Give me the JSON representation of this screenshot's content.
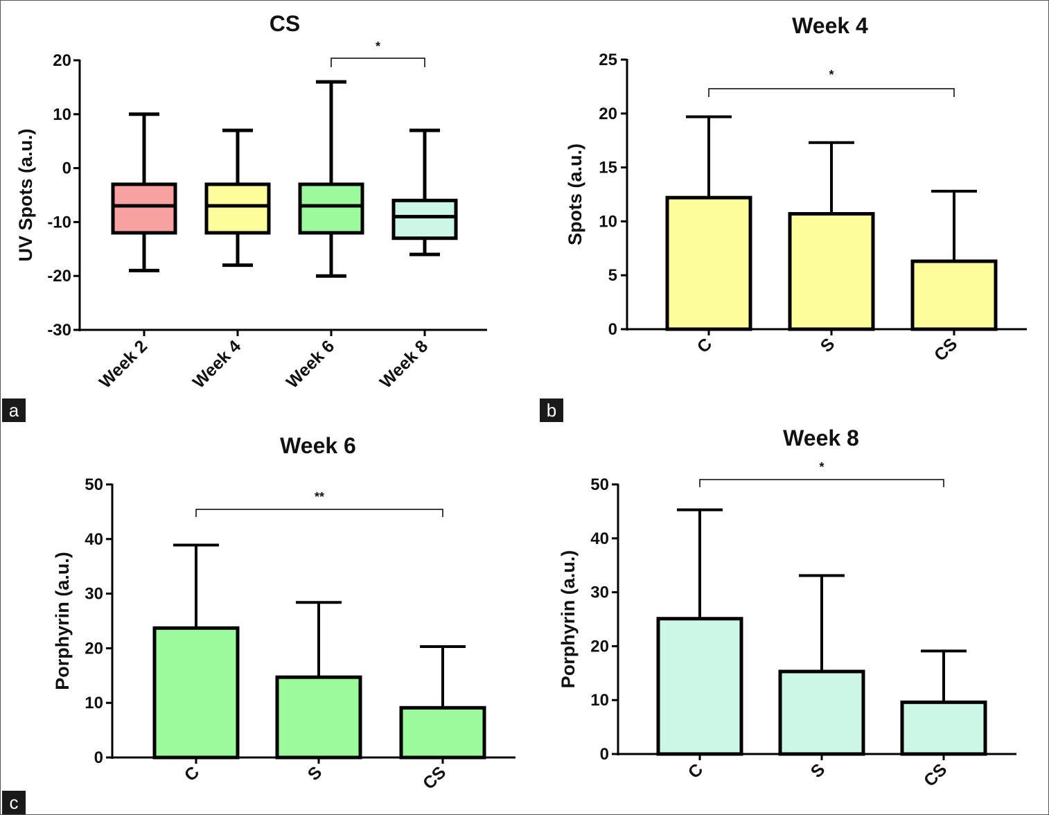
{
  "panel_letters": [
    "a",
    "b",
    "c"
  ],
  "chart_data": [
    {
      "type": "box",
      "title": "CS",
      "xlabel": "",
      "ylabel": "UV Spots (a.u.)",
      "ylim": [
        -30,
        20
      ],
      "yticks": [
        -30,
        -20,
        -10,
        0,
        10,
        20
      ],
      "categories": [
        "Week 2",
        "Week 4",
        "Week 6",
        "Week 8"
      ],
      "boxes": [
        {
          "min": -19,
          "q1": -12,
          "median": -7,
          "q3": -3,
          "max": 10
        },
        {
          "min": -18,
          "q1": -12,
          "median": -7,
          "q3": -3,
          "max": 7
        },
        {
          "min": -20,
          "q1": -12,
          "median": -7,
          "q3": -3,
          "max": 16
        },
        {
          "min": -16,
          "q1": -13,
          "median": -9,
          "q3": -6,
          "max": 7
        }
      ],
      "colors": [
        "#f7a1a1",
        "#fdfd9c",
        "#9cfa9c",
        "#ccf6e6"
      ],
      "significance": [
        {
          "from": 2,
          "to": 3,
          "label": "*"
        }
      ]
    },
    {
      "type": "bar",
      "title": "Week 4",
      "xlabel": "",
      "ylabel": "Spots (a.u.)",
      "ylim": [
        0,
        25
      ],
      "yticks": [
        0,
        5,
        10,
        15,
        20,
        25
      ],
      "categories": [
        "C",
        "S",
        "CS"
      ],
      "values": [
        12.2,
        10.7,
        6.3
      ],
      "errors": [
        19.7,
        17.3,
        12.8
      ],
      "color": "#fdfd9c",
      "significance": [
        {
          "from": 0,
          "to": 2,
          "label": "*"
        }
      ]
    },
    {
      "type": "bar",
      "title": "Week 6",
      "xlabel": "",
      "ylabel": "Porphyrin (a.u.)",
      "ylim": [
        0,
        50
      ],
      "yticks": [
        0,
        10,
        20,
        30,
        40,
        50
      ],
      "categories": [
        "C",
        "S",
        "CS"
      ],
      "values": [
        23.7,
        14.7,
        9.1
      ],
      "errors": [
        38.9,
        28.4,
        20.3
      ],
      "color": "#9cfa9c",
      "significance": [
        {
          "from": 0,
          "to": 2,
          "label": "**"
        }
      ]
    },
    {
      "type": "bar",
      "title": "Week 8",
      "xlabel": "",
      "ylabel": "Porphyrin (a.u.)",
      "ylim": [
        0,
        50
      ],
      "yticks": [
        0,
        10,
        20,
        30,
        40,
        50
      ],
      "categories": [
        "C",
        "S",
        "CS"
      ],
      "values": [
        25.1,
        15.3,
        9.6
      ],
      "errors": [
        45.3,
        33.1,
        19.1
      ],
      "color": "#ccf6e6",
      "significance": [
        {
          "from": 0,
          "to": 2,
          "label": "*"
        }
      ]
    }
  ]
}
